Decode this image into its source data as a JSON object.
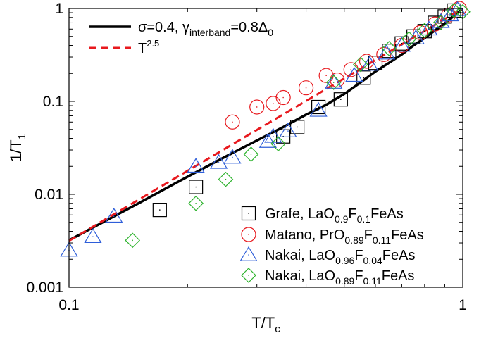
{
  "chart_data": {
    "type": "scatter",
    "title": "",
    "x_scale": "log",
    "y_scale": "log",
    "xlim": [
      0.1,
      1
    ],
    "ylim": [
      0.001,
      1
    ],
    "x_ticks": [
      "0.1",
      "1"
    ],
    "y_ticks": [
      "0.001",
      "0.01",
      "0.1",
      "1"
    ],
    "xlabel": {
      "main": "T/T",
      "sub": "c"
    },
    "ylabel": {
      "main": "1/T",
      "sub": "1"
    },
    "grid": false,
    "legend_placement_curves": "top-left",
    "legend_placement_markers": "bottom-right",
    "curves": [
      {
        "legend_parts": [
          {
            "t": "σ=0.4, γ",
            "s": "n"
          },
          {
            "t": "interband",
            "s": "sub"
          },
          {
            "t": "=0.8Δ",
            "s": "n"
          },
          {
            "t": "0",
            "s": "sub"
          }
        ],
        "color": "#000000",
        "style": "solid",
        "x": [
          0.1,
          0.15,
          0.2,
          0.25,
          0.3,
          0.35,
          0.4,
          0.45,
          0.5,
          0.55,
          0.6,
          0.65,
          0.7,
          0.75,
          0.8,
          0.85,
          0.9,
          0.95,
          1.0
        ],
        "y": [
          0.0032,
          0.008,
          0.0155,
          0.0255,
          0.038,
          0.053,
          0.072,
          0.092,
          0.12,
          0.16,
          0.21,
          0.26,
          0.32,
          0.4,
          0.48,
          0.58,
          0.69,
          0.83,
          1.0
        ]
      },
      {
        "legend_parts": [
          {
            "t": "T",
            "s": "n"
          },
          {
            "t": "2.5",
            "s": "sup"
          }
        ],
        "color": "#e8191e",
        "style": "dashed",
        "x": [
          0.1,
          0.2,
          0.3,
          0.4,
          0.5,
          0.6,
          0.7,
          0.8,
          0.9,
          1.0
        ],
        "y": [
          0.00316,
          0.0179,
          0.0493,
          0.1012,
          0.1768,
          0.2789,
          0.41,
          0.5724,
          0.7684,
          1.0
        ]
      }
    ],
    "series": [
      {
        "marker": "square",
        "color": "#000000",
        "legend_parts": [
          {
            "t": "Grafe, LaO",
            "s": "n"
          },
          {
            "t": "0.9",
            "s": "sub"
          },
          {
            "t": "F",
            "s": "n"
          },
          {
            "t": "0.1",
            "s": "sub"
          },
          {
            "t": "FeAs",
            "s": "n"
          }
        ],
        "x": [
          0.17,
          0.21,
          0.35,
          0.38,
          0.43,
          0.49,
          0.56,
          0.6,
          0.65,
          0.7,
          0.75,
          0.8,
          0.85,
          0.9,
          0.95
        ],
        "y": [
          0.0068,
          0.012,
          0.042,
          0.053,
          0.087,
          0.105,
          0.18,
          0.26,
          0.35,
          0.42,
          0.5,
          0.57,
          0.7,
          0.82,
          0.95
        ]
      },
      {
        "marker": "circle",
        "color": "#e8191e",
        "legend_parts": [
          {
            "t": "Matano, PrO",
            "s": "n"
          },
          {
            "t": "0.89",
            "s": "sub"
          },
          {
            "t": "F",
            "s": "n"
          },
          {
            "t": "0.11",
            "s": "sub"
          },
          {
            "t": "FeAs",
            "s": "n"
          }
        ],
        "x": [
          0.26,
          0.3,
          0.33,
          0.35,
          0.4,
          0.45,
          0.48,
          0.52,
          0.57,
          0.63,
          0.7,
          0.78,
          0.85,
          0.92,
          0.98
        ],
        "y": [
          0.06,
          0.087,
          0.095,
          0.11,
          0.14,
          0.19,
          0.17,
          0.22,
          0.27,
          0.32,
          0.4,
          0.55,
          0.68,
          0.85,
          1.0
        ]
      },
      {
        "marker": "triangle",
        "color": "#2e5ed9",
        "legend_parts": [
          {
            "t": "Nakai, LaO",
            "s": "n"
          },
          {
            "t": "0.96",
            "s": "sub"
          },
          {
            "t": "F",
            "s": "n"
          },
          {
            "t": "0.04",
            "s": "sub"
          },
          {
            "t": "FeAs",
            "s": "n"
          }
        ],
        "x": [
          0.1,
          0.115,
          0.13,
          0.21,
          0.24,
          0.26,
          0.32,
          0.33,
          0.36,
          0.43,
          0.47,
          0.53,
          0.58,
          0.64,
          0.7,
          0.76,
          0.82,
          0.88,
          0.93,
          0.97
        ],
        "y": [
          0.0025,
          0.0035,
          0.0058,
          0.02,
          0.022,
          0.025,
          0.037,
          0.042,
          0.048,
          0.08,
          0.16,
          0.19,
          0.25,
          0.33,
          0.4,
          0.48,
          0.6,
          0.72,
          0.85,
          0.97
        ]
      },
      {
        "marker": "diamond",
        "color": "#2db32d",
        "legend_parts": [
          {
            "t": "Nakai, LaO",
            "s": "n"
          },
          {
            "t": "0.89",
            "s": "sub"
          },
          {
            "t": "F",
            "s": "n"
          },
          {
            "t": "0.11",
            "s": "sub"
          },
          {
            "t": "FeAs",
            "s": "n"
          }
        ],
        "x": [
          0.145,
          0.21,
          0.25,
          0.29,
          0.34,
          0.47,
          0.55,
          0.65,
          0.73,
          0.8,
          0.88,
          0.95,
          1.0
        ],
        "y": [
          0.0032,
          0.008,
          0.0145,
          0.027,
          0.035,
          0.16,
          0.25,
          0.37,
          0.47,
          0.58,
          0.71,
          0.95,
          0.92
        ]
      }
    ]
  }
}
